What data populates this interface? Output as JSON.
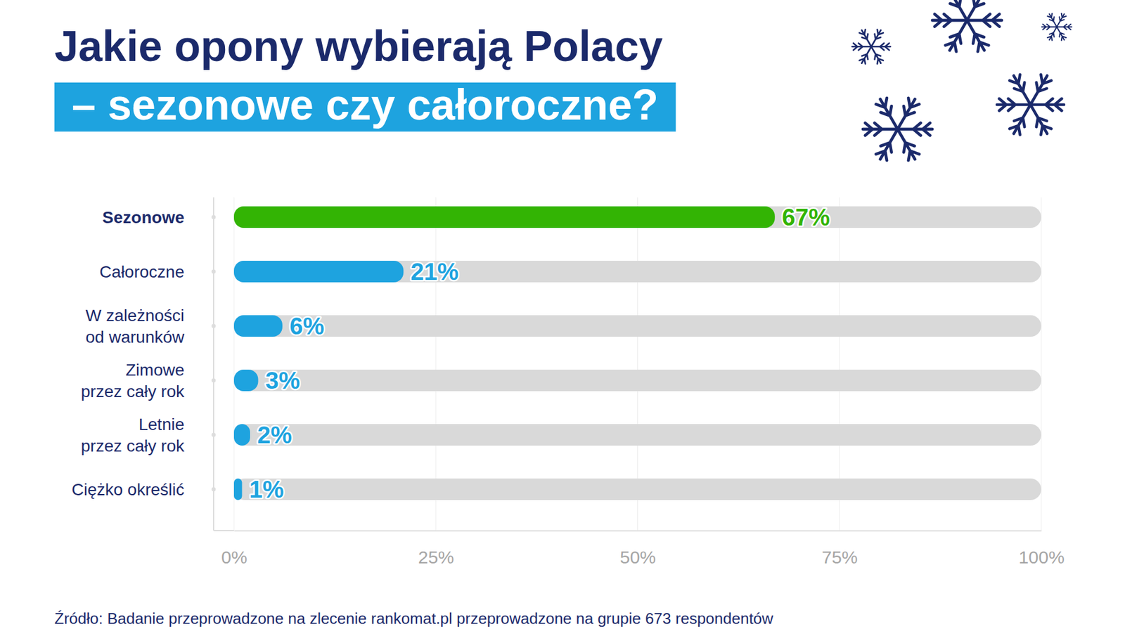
{
  "chart_data": {
    "type": "bar",
    "orientation": "horizontal",
    "title": "Jakie opony wybierają Polacy",
    "subtitle": "– sezonowe czy całoroczne?",
    "categories": [
      "Sezonowe",
      "Całoroczne",
      "W zależności od warunków",
      "Zimowe przez cały rok",
      "Letnie przez cały rok",
      "Ciężko określić"
    ],
    "values": [
      67,
      21,
      6,
      3,
      2,
      1
    ],
    "value_labels": [
      "67%",
      "21%",
      "6%",
      "3%",
      "2%",
      "1%"
    ],
    "colors": [
      "#33b404",
      "#1ea3df",
      "#1ea3df",
      "#1ea3df",
      "#1ea3df",
      "#1ea3df"
    ],
    "xlim": [
      0,
      100
    ],
    "xticks": [
      {
        "value": 0,
        "label": "0%"
      },
      {
        "value": 25,
        "label": "25%"
      },
      {
        "value": 50,
        "label": "50%"
      },
      {
        "value": 75,
        "label": "75%"
      },
      {
        "value": 100,
        "label": "100%"
      }
    ],
    "grid": true,
    "data_labels": true,
    "source": "Źródło: Badanie przeprowadzone na zlecenie rankomat.pl przeprowadzone na grupie 673 respondentów"
  }
}
